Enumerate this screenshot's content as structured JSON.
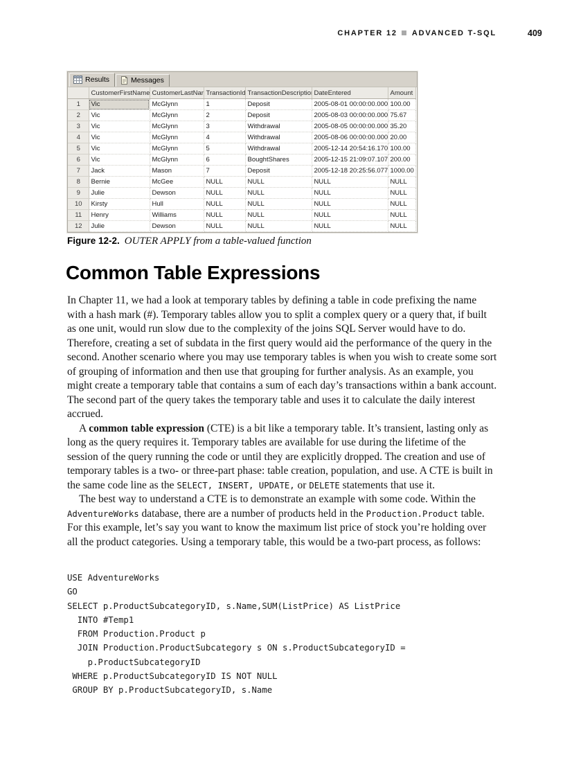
{
  "page_header": {
    "chapter": "CHAPTER 12",
    "separator_icon": "gray-square-icon",
    "title": "ADVANCED T-SQL",
    "page_number": "409"
  },
  "colors": {
    "tab_strip_bg": "#d6d2ca",
    "grid_header_bg": "#eceae5",
    "selected_cell_bg": "#dcd9d1",
    "separator_square": "#a9a9a9",
    "page_bg": "#ffffff"
  },
  "results_grid": {
    "tabs": [
      {
        "label": "Results",
        "icon": "grid-icon",
        "active": true
      },
      {
        "label": "Messages",
        "icon": "messages-icon",
        "active": false
      }
    ],
    "columns": [
      "CustomerFirstName",
      "CustomerLastName",
      "TransactionId",
      "TransactionDescription",
      "DateEntered",
      "Amount"
    ],
    "rows": [
      [
        "Vic",
        "McGlynn",
        "1",
        "Deposit",
        "2005-08-01 00:00:00.000",
        "100.00"
      ],
      [
        "Vic",
        "McGlynn",
        "2",
        "Deposit",
        "2005-08-03 00:00:00.000",
        "75.67"
      ],
      [
        "Vic",
        "McGlynn",
        "3",
        "Withdrawal",
        "2005-08-05 00:00:00.000",
        "35.20"
      ],
      [
        "Vic",
        "McGlynn",
        "4",
        "Withdrawal",
        "2005-08-06 00:00:00.000",
        "20.00"
      ],
      [
        "Vic",
        "McGlynn",
        "5",
        "Withdrawal",
        "2005-12-14 20:54:16.170",
        "100.00"
      ],
      [
        "Vic",
        "McGlynn",
        "6",
        "BoughtShares",
        "2005-12-15 21:09:07.107",
        "200.00"
      ],
      [
        "Jack",
        "Mason",
        "7",
        "Deposit",
        "2005-12-18 20:25:56.077",
        "1000.00"
      ],
      [
        "Bernie",
        "McGee",
        "NULL",
        "NULL",
        "NULL",
        "NULL"
      ],
      [
        "Julie",
        "Dewson",
        "NULL",
        "NULL",
        "NULL",
        "NULL"
      ],
      [
        "Kirsty",
        "Hull",
        "NULL",
        "NULL",
        "NULL",
        "NULL"
      ],
      [
        "Henry",
        "Williams",
        "NULL",
        "NULL",
        "NULL",
        "NULL"
      ],
      [
        "Julie",
        "Dewson",
        "NULL",
        "NULL",
        "NULL",
        "NULL"
      ]
    ],
    "selected_cell": {
      "row": 0,
      "col": 0
    }
  },
  "figure_caption": {
    "label": "Figure 12-2.",
    "text": "OUTER APPLY from a table-valued function"
  },
  "section": {
    "heading": "Common Table Expressions",
    "paragraphs": [
      {
        "indent": false,
        "segments": [
          {
            "s": "n",
            "t": "In Chapter 11, we had a look at temporary tables by defining a table in code prefixing the name with a hash mark (#). Temporary tables allow you to split a complex query or a query that, if built as one unit, would run slow due to the complexity of the joins SQL Server would have to do. Therefore, creating a set of subdata in the first query would aid the performance of the query in the second. Another scenario where you may use temporary tables is when you wish to create some sort of grouping of information and then use that grouping for further analysis. As an example, you might create a temporary table that contains a sum of each day’s transactions within a bank account. The second part of the query takes the temporary table and uses it to calculate the daily interest accrued."
          }
        ]
      },
      {
        "indent": true,
        "segments": [
          {
            "s": "n",
            "t": "A "
          },
          {
            "s": "b",
            "t": "common table expression"
          },
          {
            "s": "n",
            "t": " (CTE) is a bit like a temporary table. It’s transient, lasting only as long as the query requires it. Temporary tables are available for use during the lifetime of the session of the query running the code or until they are explicitly dropped. The creation and use of temporary tables is a two- or three-part phase: table creation, population, and use. A CTE is built in the same code line as the "
          },
          {
            "s": "m",
            "t": "SELECT, INSERT, UPDATE,"
          },
          {
            "s": "n",
            "t": " or "
          },
          {
            "s": "m",
            "t": "DELETE"
          },
          {
            "s": "n",
            "t": " statements that use it."
          }
        ]
      },
      {
        "indent": true,
        "segments": [
          {
            "s": "n",
            "t": "The best way to understand a CTE is to demonstrate an example with some code. Within the "
          },
          {
            "s": "m",
            "t": "AdventureWorks"
          },
          {
            "s": "n",
            "t": " database, there are a number of products held in the "
          },
          {
            "s": "m",
            "t": "Production.Product"
          },
          {
            "s": "n",
            "t": " table. For this example, let’s say you want to know the maximum list price of stock you’re holding over all the product categories. Using a temporary table, this would be a two-part process, as follows:"
          }
        ]
      }
    ]
  },
  "code_block": {
    "lines": [
      "USE AdventureWorks",
      "GO",
      "SELECT p.ProductSubcategoryID, s.Name,SUM(ListPrice) AS ListPrice",
      "  INTO #Temp1",
      "  FROM Production.Product p",
      "  JOIN Production.ProductSubcategory s ON s.ProductSubcategoryID =",
      "    p.ProductSubcategoryID",
      " WHERE p.ProductSubcategoryID IS NOT NULL",
      " GROUP BY p.ProductSubcategoryID, s.Name"
    ]
  }
}
